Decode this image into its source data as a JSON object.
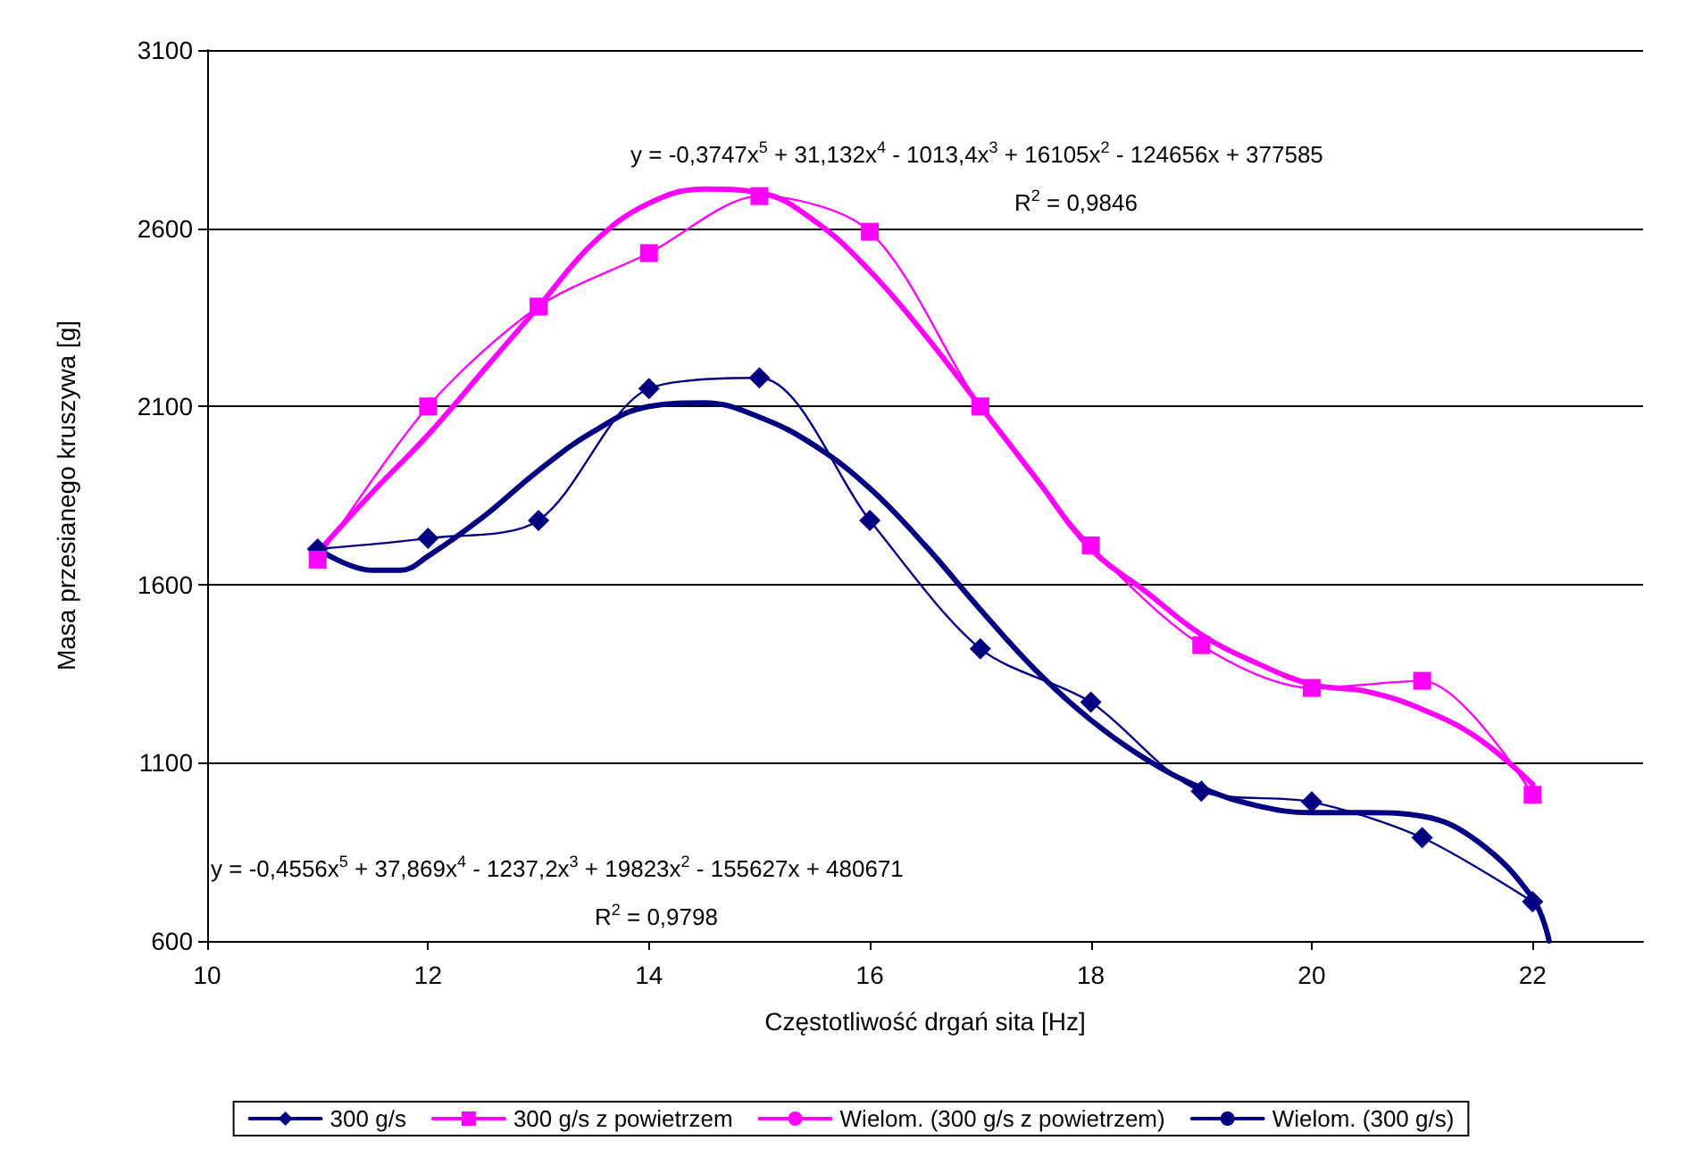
{
  "chart_data": {
    "type": "line",
    "xlabel": "Częstotliwość drgań sita [Hz]",
    "ylabel": "Masa przesianego kruszywa [g]",
    "xlim": [
      10,
      23
    ],
    "xticks": [
      10,
      12,
      14,
      16,
      18,
      20,
      22
    ],
    "ylim": [
      600,
      3100
    ],
    "yticks": [
      600,
      1100,
      1600,
      2100,
      2600,
      3100
    ],
    "grid": "y",
    "legend": "bottom",
    "line_style": "solid",
    "annotations": [
      "y = -0,3747x$^{5}$ + 31,132x$^{4}$ - 1013,4x$^{3}$ + 16105x$^{2}$ - 124656x + 377585",
      "R$^{2}$ = 0,9846",
      "y = -0,4556x$^{5}$ + 37,869x$^{4}$ - 1237,2x$^{3}$ + 19823x$^{2}$ - 155627x + 480671",
      "R$^{2}$ = 0,9798"
    ],
    "series": [
      {
        "name": "300 g/s",
        "color": "#000080",
        "marker": "diamond",
        "x": [
          11,
          12,
          13,
          14,
          15,
          16,
          17,
          18,
          19,
          20,
          21,
          22
        ],
        "values": [
          1700,
          1730,
          1780,
          2150,
          2180,
          1780,
          1420,
          1270,
          1020,
          990,
          890,
          710
        ]
      },
      {
        "name": "300 g/s z powietrzem",
        "color": "#ff00ff",
        "marker": "square",
        "x": [
          11,
          12,
          13,
          14,
          15,
          16,
          17,
          18,
          19,
          20,
          21,
          22
        ],
        "values": [
          1670,
          2100,
          2380,
          2530,
          2690,
          2590,
          2100,
          1710,
          1430,
          1310,
          1330,
          1010
        ]
      },
      {
        "name": "Wielom. (300 g/s z powietrzem)",
        "color": "#ff00ff",
        "marker": "none",
        "x": [
          11,
          11.5,
          12,
          12.5,
          13,
          13.5,
          14,
          14.5,
          15,
          15.5,
          16,
          16.5,
          17,
          17.5,
          18,
          18.5,
          19,
          19.5,
          20,
          20.5,
          21,
          21.5,
          22
        ],
        "values": [
          1690,
          1860,
          2020,
          2200,
          2380,
          2560,
          2670,
          2710,
          2700,
          2620,
          2480,
          2300,
          2100,
          1900,
          1700,
          1580,
          1460,
          1380,
          1320,
          1300,
          1250,
          1170,
          1040
        ]
      },
      {
        "name": "Wielom. (300 g/s)",
        "color": "#000080",
        "marker": "none",
        "x": [
          11,
          11.5,
          11.75,
          12,
          12.5,
          13,
          13.5,
          14,
          14.5,
          15,
          15.5,
          16,
          16.5,
          17,
          17.5,
          18,
          18.5,
          19,
          19.5,
          20,
          20.5,
          21,
          21.5,
          22,
          22.15
        ],
        "values": [
          1700,
          1640,
          1640,
          1680,
          1790,
          1920,
          2030,
          2100,
          2110,
          2070,
          1990,
          1870,
          1710,
          1530,
          1360,
          1220,
          1110,
          1030,
          980,
          960,
          960,
          950,
          880,
          720,
          600
        ]
      }
    ]
  }
}
